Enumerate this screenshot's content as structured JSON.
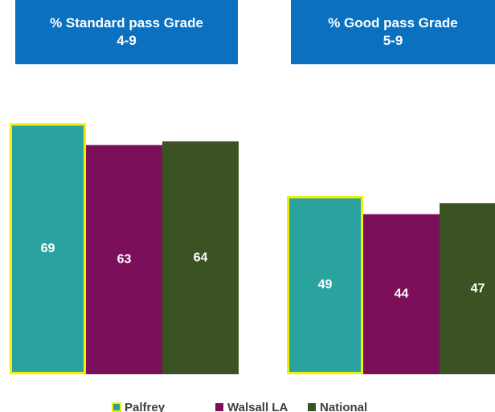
{
  "chart_data": {
    "type": "bar",
    "categories": [
      "% Standard pass  Grade\n4-9",
      "% Good pass Grade\n5-9"
    ],
    "series": [
      {
        "name": "Palfrey",
        "color": "#2aa39f",
        "values": [
          69,
          49
        ]
      },
      {
        "name": "Walsall LA",
        "color": "#7b0f5a",
        "values": [
          63,
          44
        ]
      },
      {
        "name": "National",
        "color": "#3b5323",
        "values": [
          64,
          47
        ]
      }
    ],
    "highlight_color": "#f0f000"
  }
}
